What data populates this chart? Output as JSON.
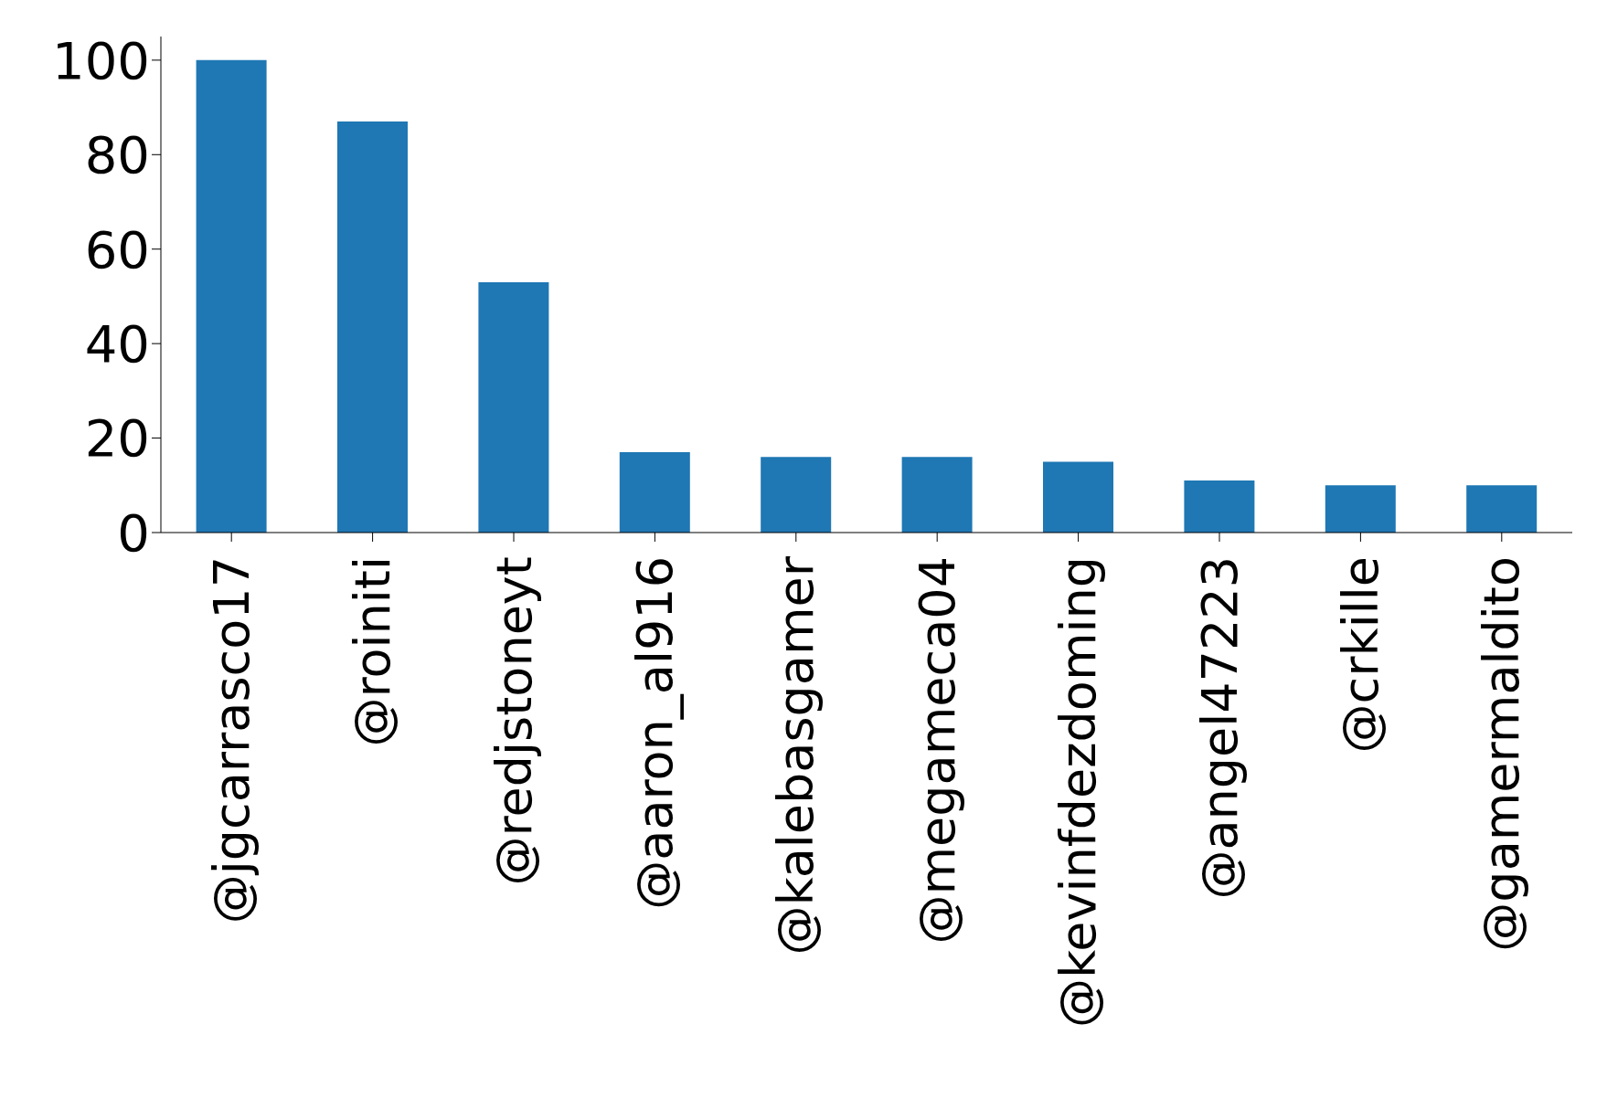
{
  "chart_data": {
    "type": "bar",
    "categories": [
      "@jgcarrasco17",
      "@roiniti",
      "@redjstoneyt",
      "@aaron_al916",
      "@kalebasgamer",
      "@megameca04",
      "@kevinfdezdoming",
      "@angel47223",
      "@crkille",
      "@gamermaldito"
    ],
    "values": [
      100,
      87,
      53,
      17,
      16,
      16,
      15,
      11,
      10,
      10
    ],
    "color": "#1f77b4",
    "ylim": [
      0,
      105
    ],
    "yticks": [
      0,
      20,
      40,
      60,
      80,
      100
    ],
    "grid": false
  }
}
